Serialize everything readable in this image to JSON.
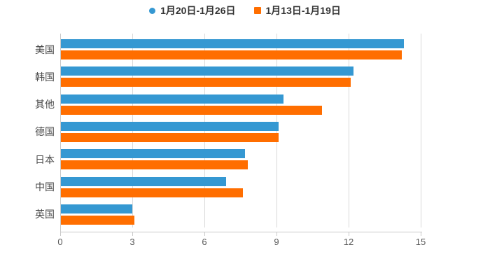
{
  "chart_data": {
    "type": "bar",
    "orientation": "horizontal",
    "title": "",
    "xlabel": "",
    "ylabel": "",
    "categories": [
      "美国",
      "韩国",
      "其他",
      "德国",
      "日本",
      "中国",
      "英国"
    ],
    "series": [
      {
        "name": "1月20日-1月26日",
        "color": "#3598d2",
        "marker": "circle",
        "values": [
          14.3,
          12.2,
          9.3,
          9.1,
          7.7,
          6.9,
          3.0
        ]
      },
      {
        "name": "1月13日-1月19日",
        "color": "#ff6e00",
        "marker": "square",
        "values": [
          14.2,
          12.1,
          10.9,
          9.1,
          7.8,
          7.6,
          3.1
        ]
      }
    ],
    "xlim": [
      0,
      15
    ],
    "x_ticks": [
      0,
      3,
      6,
      9,
      12,
      15
    ],
    "grid": true,
    "legend_position": "top"
  },
  "colors": {
    "background": "#ffffff",
    "grid": "#d9d9d9",
    "axis": "#c9c9c9",
    "tick_label": "#595959",
    "category_label": "#4a4a4a",
    "legend_text": "#333333",
    "series_blue": "#3598d2",
    "series_orange": "#ff6e00"
  }
}
